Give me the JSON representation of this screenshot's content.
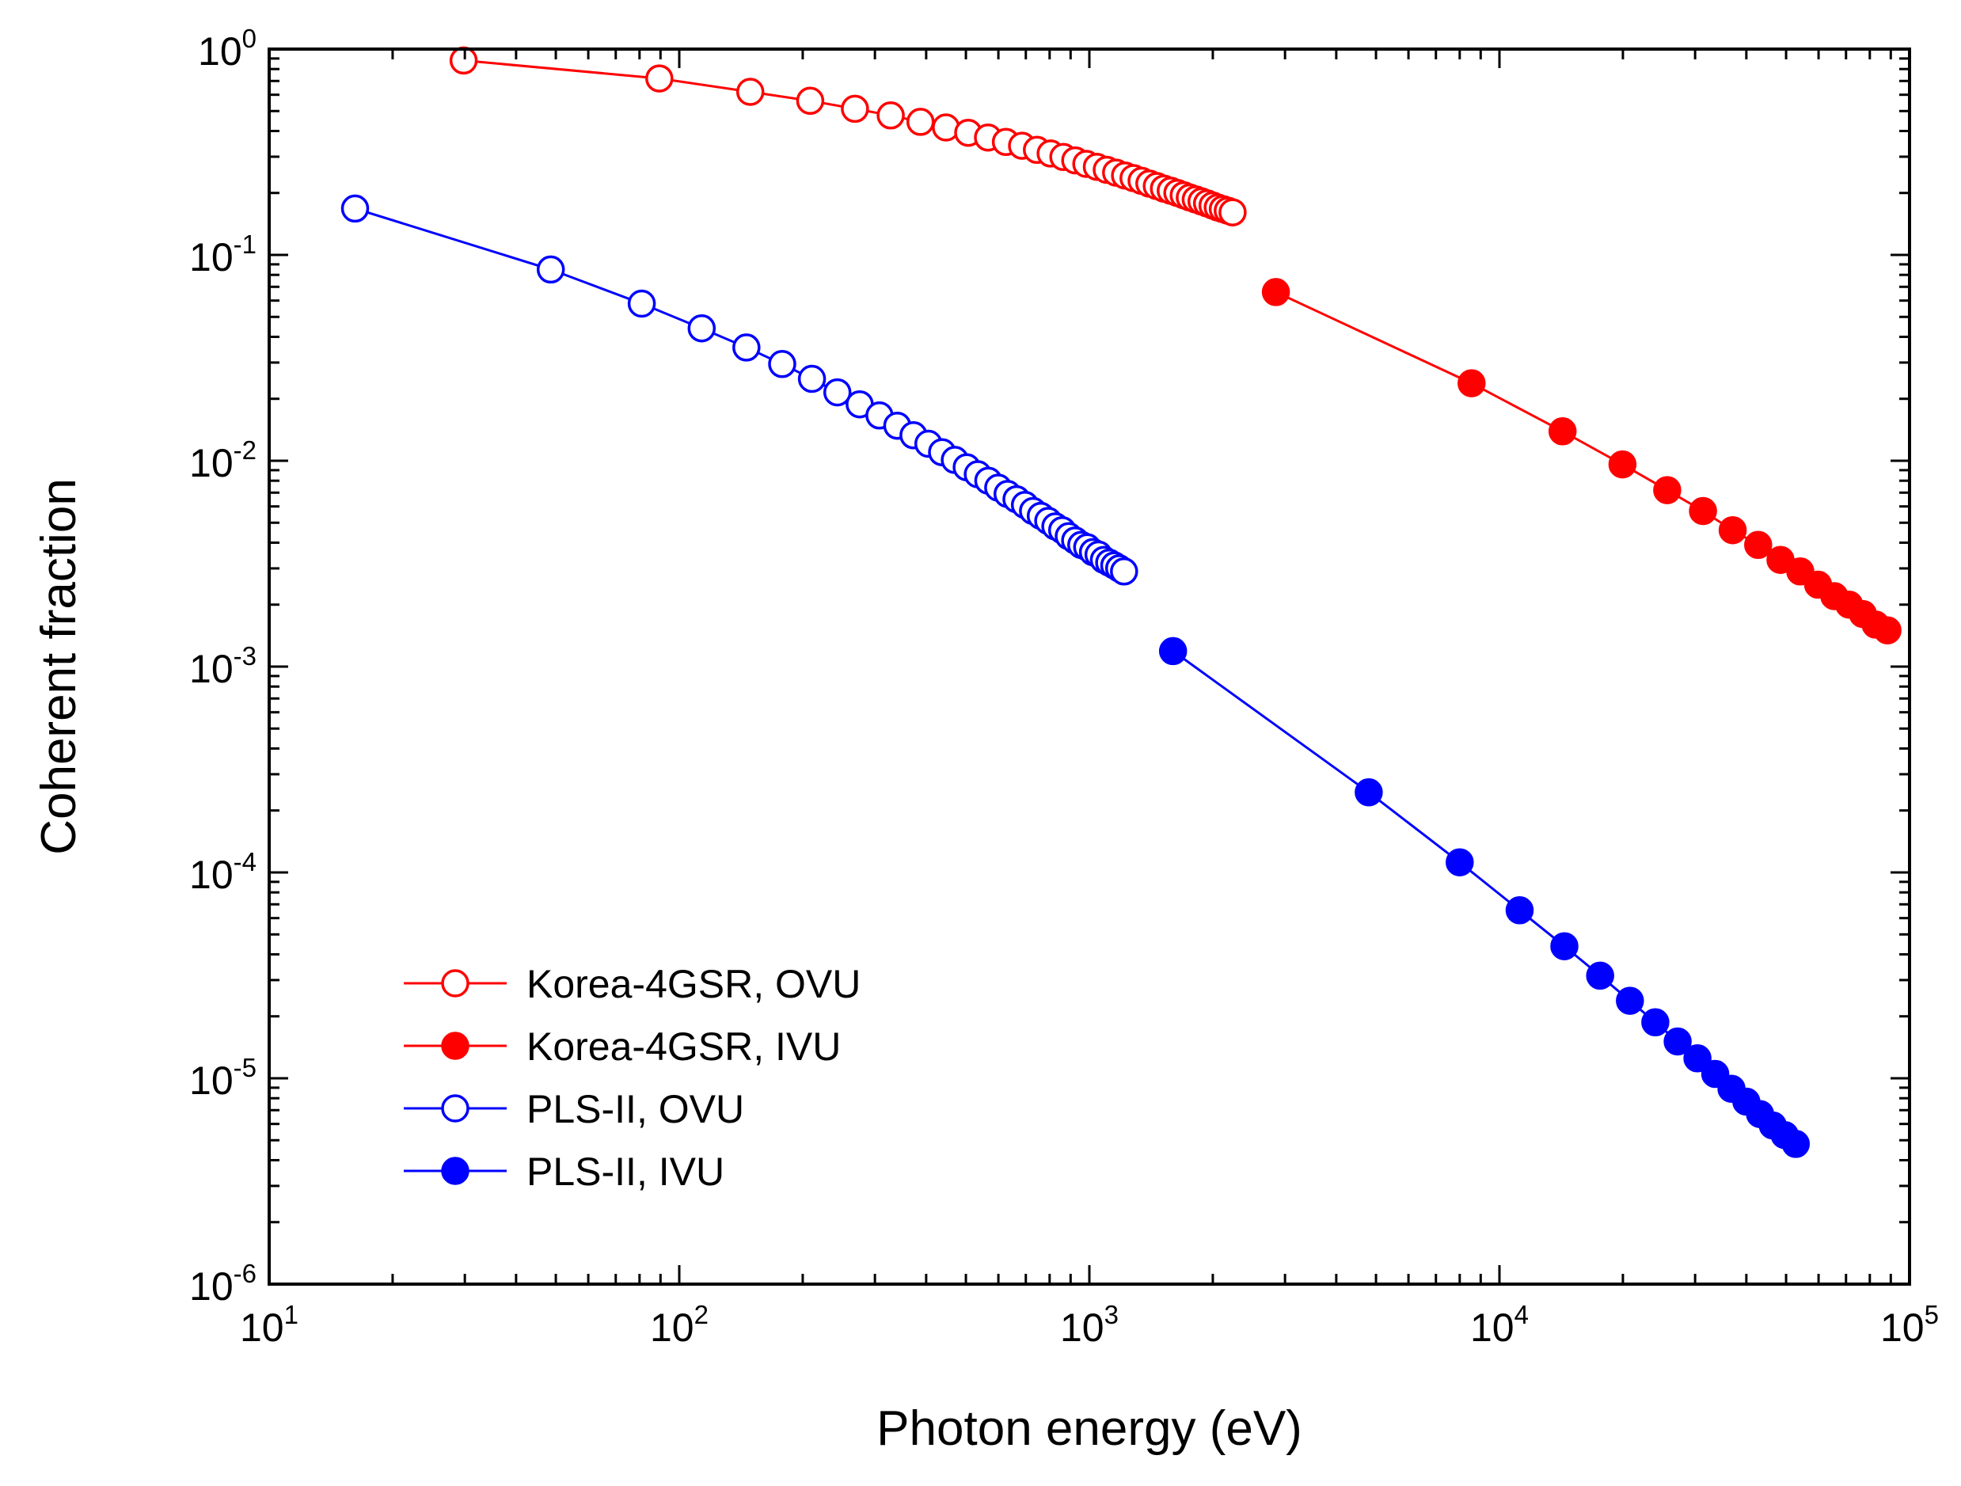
{
  "chart_data": {
    "type": "scatter",
    "title": "",
    "xlabel": "Photon energy (eV)",
    "ylabel": "Coherent fraction",
    "xscale": "log",
    "yscale": "log",
    "xlim": [
      10,
      100000
    ],
    "ylim": [
      1e-06,
      1
    ],
    "x_ticks": [
      {
        "value": 10,
        "base": "10",
        "exp": "1"
      },
      {
        "value": 100,
        "base": "10",
        "exp": "2"
      },
      {
        "value": 1000,
        "base": "10",
        "exp": "3"
      },
      {
        "value": 10000,
        "base": "10",
        "exp": "4"
      },
      {
        "value": 100000,
        "base": "10",
        "exp": "5"
      }
    ],
    "y_ticks": [
      {
        "value": 1,
        "base": "10",
        "exp": "0"
      },
      {
        "value": 0.1,
        "base": "10",
        "exp": "-1"
      },
      {
        "value": 0.01,
        "base": "10",
        "exp": "-2"
      },
      {
        "value": 0.001,
        "base": "10",
        "exp": "-3"
      },
      {
        "value": 0.0001,
        "base": "10",
        "exp": "-4"
      },
      {
        "value": 1e-05,
        "base": "10",
        "exp": "-5"
      },
      {
        "value": 1e-06,
        "base": "10",
        "exp": "-6"
      }
    ],
    "legend_position": "bottom-left",
    "series": [
      {
        "name": "Korea-4GSR, OVU",
        "color": "#ff0000",
        "marker": "open-circle",
        "x": [
          29.8,
          89.4,
          149,
          208.6,
          268.2,
          327.8,
          387.4,
          447,
          506.6,
          566.2,
          625.8,
          685.4,
          745,
          804.6,
          864.2,
          923.8,
          983.4,
          1043,
          1102.6,
          1162.2,
          1221.8,
          1281.4,
          1341,
          1400.6,
          1460.2,
          1519.8,
          1579.4,
          1639,
          1698.6,
          1758.2,
          1817.8,
          1877.4,
          1937,
          1996.6,
          2056.2,
          2115.8,
          2175.4,
          2235
        ],
        "y": [
          0.88,
          0.72,
          0.62,
          0.561,
          0.513,
          0.476,
          0.443,
          0.416,
          0.392,
          0.372,
          0.354,
          0.339,
          0.324,
          0.311,
          0.299,
          0.288,
          0.277,
          0.268,
          0.259,
          0.251,
          0.243,
          0.236,
          0.229,
          0.222,
          0.216,
          0.21,
          0.205,
          0.2,
          0.195,
          0.19,
          0.186,
          0.182,
          0.178,
          0.174,
          0.17,
          0.167,
          0.164,
          0.161
        ]
      },
      {
        "name": "Korea-4GSR, IVU",
        "color": "#ff0000",
        "marker": "filled-circle",
        "x": [
          2850,
          8550,
          14250,
          19950,
          25650,
          31350,
          37050,
          42750,
          48450,
          54150,
          59850,
          65550,
          71250,
          76950,
          82650,
          88350
        ],
        "y": [
          0.066,
          0.0238,
          0.0139,
          0.0096,
          0.0072,
          0.0057,
          0.0046,
          0.0039,
          0.0033,
          0.0029,
          0.0025,
          0.0022,
          0.002,
          0.0018,
          0.0016,
          0.0015
        ]
      },
      {
        "name": "PLS-II, OVU",
        "color": "#0000ff",
        "marker": "open-circle",
        "x": [
          16.2,
          48.6,
          81,
          113.4,
          145.8,
          178.2,
          210.6,
          243,
          275.4,
          307.8,
          340.2,
          372.6,
          405,
          437.4,
          469.8,
          502.2,
          534.6,
          567,
          599.4,
          631.8,
          664.2,
          696.6,
          729,
          761.4,
          793.8,
          826.2,
          858.6,
          891,
          923.4,
          955.8,
          988.2,
          1020.6,
          1053,
          1085.4,
          1117.8,
          1150.2,
          1182.6,
          1215
        ],
        "y": [
          0.168,
          0.085,
          0.058,
          0.044,
          0.0355,
          0.0295,
          0.025,
          0.0215,
          0.0188,
          0.0166,
          0.0148,
          0.0133,
          0.0121,
          0.011,
          0.0101,
          0.0093,
          0.0086,
          0.008,
          0.0074,
          0.0069,
          0.0065,
          0.0061,
          0.0057,
          0.0054,
          0.0051,
          0.0048,
          0.0046,
          0.0043,
          0.0041,
          0.0039,
          0.0038,
          0.0036,
          0.0035,
          0.0033,
          0.0032,
          0.0031,
          0.003,
          0.0029
        ]
      },
      {
        "name": "PLS-II, IVU",
        "color": "#0000ff",
        "marker": "filled-circle",
        "x": [
          1600,
          4800,
          8000,
          11200,
          14400,
          17600,
          20800,
          24000,
          27200,
          30400,
          33600,
          36800,
          40000,
          43200,
          46400,
          49600,
          52800
        ],
        "y": [
          0.00119,
          0.000245,
          0.000112,
          6.55e-05,
          4.38e-05,
          3.15e-05,
          2.38e-05,
          1.87e-05,
          1.51e-05,
          1.25e-05,
          1.05e-05,
          8.9e-06,
          7.7e-06,
          6.7e-06,
          5.9e-06,
          5.3e-06,
          4.8e-06
        ]
      }
    ]
  }
}
